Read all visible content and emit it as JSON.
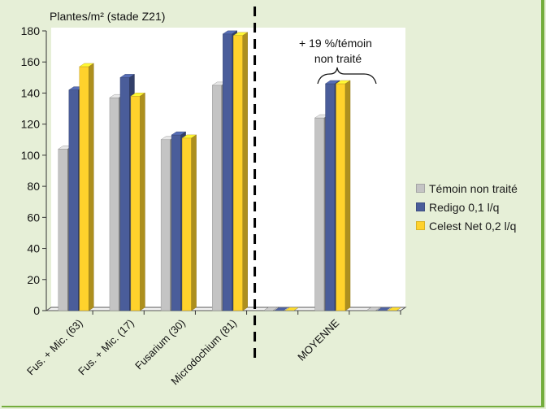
{
  "chart_data": {
    "type": "bar",
    "title": "",
    "ylabel": "Plantes/m² (stade Z21)",
    "xlabel": "",
    "ylim": [
      0,
      180
    ],
    "yticks": [
      0,
      20,
      40,
      60,
      80,
      100,
      120,
      140,
      160,
      180
    ],
    "categories": [
      "Fus. + Mic. (63)",
      "Fus. + Mic. (17)",
      "Fusarium (30)",
      "Microdochium (81)",
      "",
      "MOYENNE",
      ""
    ],
    "series": [
      {
        "name": "Témoin non traité",
        "values": [
          104,
          137,
          110,
          145,
          null,
          124,
          null
        ],
        "color": "#c4c4c4"
      },
      {
        "name": "Redigo 0,1 l/q",
        "values": [
          142,
          150,
          113,
          178,
          null,
          146,
          null
        ],
        "color": "#4a5d9a"
      },
      {
        "name": "Celest Net 0,2 l/q",
        "values": [
          157,
          138,
          111,
          177,
          null,
          146,
          null
        ],
        "color": "#ffd22c"
      }
    ],
    "annotation": {
      "lines": [
        "+ 19 %/témoin",
        "non traité"
      ]
    },
    "separator_after_category": 3,
    "grid": false,
    "legend_position": "right"
  }
}
